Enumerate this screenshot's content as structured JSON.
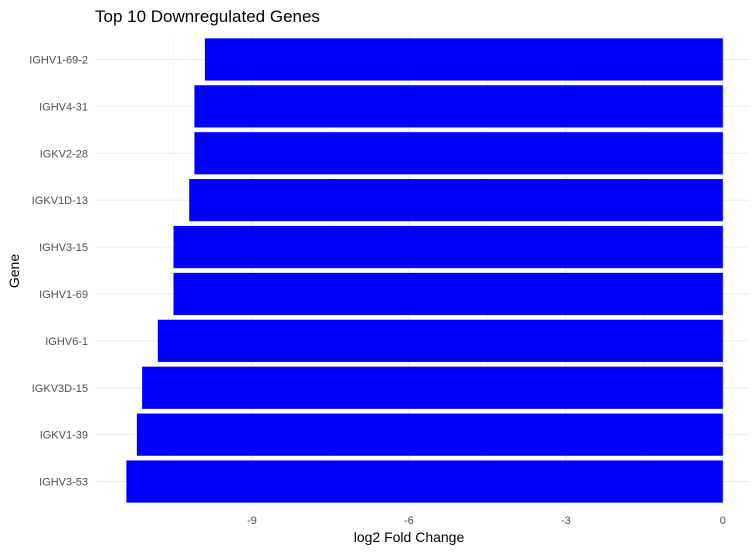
{
  "chart_data": {
    "type": "bar",
    "orientation": "horizontal",
    "title": "Top 10 Downregulated Genes",
    "xlabel": "log2 Fold Change",
    "ylabel": "Gene",
    "categories": [
      "IGHV3-53",
      "IGKV1-39",
      "IGKV3D-15",
      "IGHV6-1",
      "IGHV1-69",
      "IGHV3-15",
      "IGKV1D-13",
      "IGKV2-28",
      "IGHV4-31",
      "IGHV1-69-2"
    ],
    "values": [
      -11.4,
      -11.2,
      -11.1,
      -10.8,
      -10.5,
      -10.5,
      -10.2,
      -10.1,
      -10.1,
      -9.9
    ],
    "xlim": [
      -12.0,
      0.5
    ],
    "xticks": [
      -9,
      -6,
      -3,
      0
    ],
    "tick_labels": [
      "-9",
      "-6",
      "-3",
      "0"
    ],
    "bar_color": "#0000ff",
    "grid": true,
    "legend": "none"
  }
}
